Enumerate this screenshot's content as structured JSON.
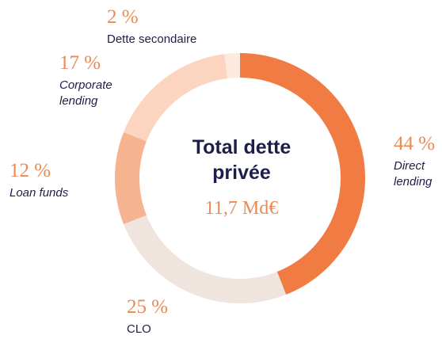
{
  "chart_data": {
    "type": "donut",
    "title": "Total dette privée",
    "subtitle": "11,7 Md€",
    "categories": [
      "Direct lending",
      "CLO",
      "Loan funds",
      "Corporate lending",
      "Dette secondaire"
    ],
    "values": [
      44,
      25,
      12,
      17,
      2
    ],
    "value_labels": [
      "44 %",
      "25 %",
      "12 %",
      "17 %",
      "2 %"
    ],
    "colors": [
      "#f07c43",
      "#efe5de",
      "#f5b48f",
      "#fbd5bf",
      "#fde9dd"
    ]
  }
}
